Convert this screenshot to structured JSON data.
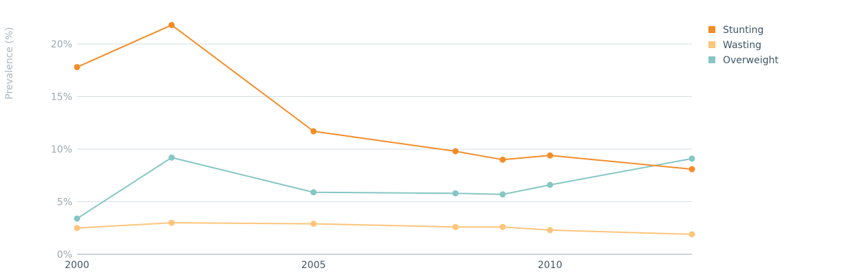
{
  "chart_data": {
    "type": "line",
    "ylabel": "Prevalence (%)",
    "ylim": [
      0,
      23
    ],
    "xlim": [
      2000,
      2013
    ],
    "y_ticks": [
      0,
      5,
      10,
      15,
      20
    ],
    "y_tick_labels": [
      "0%",
      "5%",
      "10%",
      "15%",
      "20%"
    ],
    "x_ticks": [
      2000,
      2005,
      2010
    ],
    "x_tick_labels": [
      "2000",
      "2005",
      "2010"
    ],
    "grid": true,
    "legend_position": "top-right",
    "series": [
      {
        "name": "Stunting",
        "color": "#f28c28",
        "x": [
          2000,
          2002,
          2005,
          2008,
          2009,
          2010,
          2013
        ],
        "y": [
          17.8,
          21.8,
          11.7,
          9.8,
          9.0,
          9.4,
          8.1
        ]
      },
      {
        "name": "Wasting",
        "color": "#fdc57c",
        "x": [
          2000,
          2002,
          2005,
          2008,
          2009,
          2010,
          2013
        ],
        "y": [
          2.5,
          3.0,
          2.9,
          2.6,
          2.6,
          2.3,
          1.9
        ]
      },
      {
        "name": "Overweight",
        "color": "#86c6c4",
        "x": [
          2000,
          2002,
          2005,
          2008,
          2009,
          2010,
          2013
        ],
        "y": [
          3.4,
          9.2,
          5.9,
          5.8,
          5.7,
          6.6,
          9.1
        ]
      }
    ]
  }
}
